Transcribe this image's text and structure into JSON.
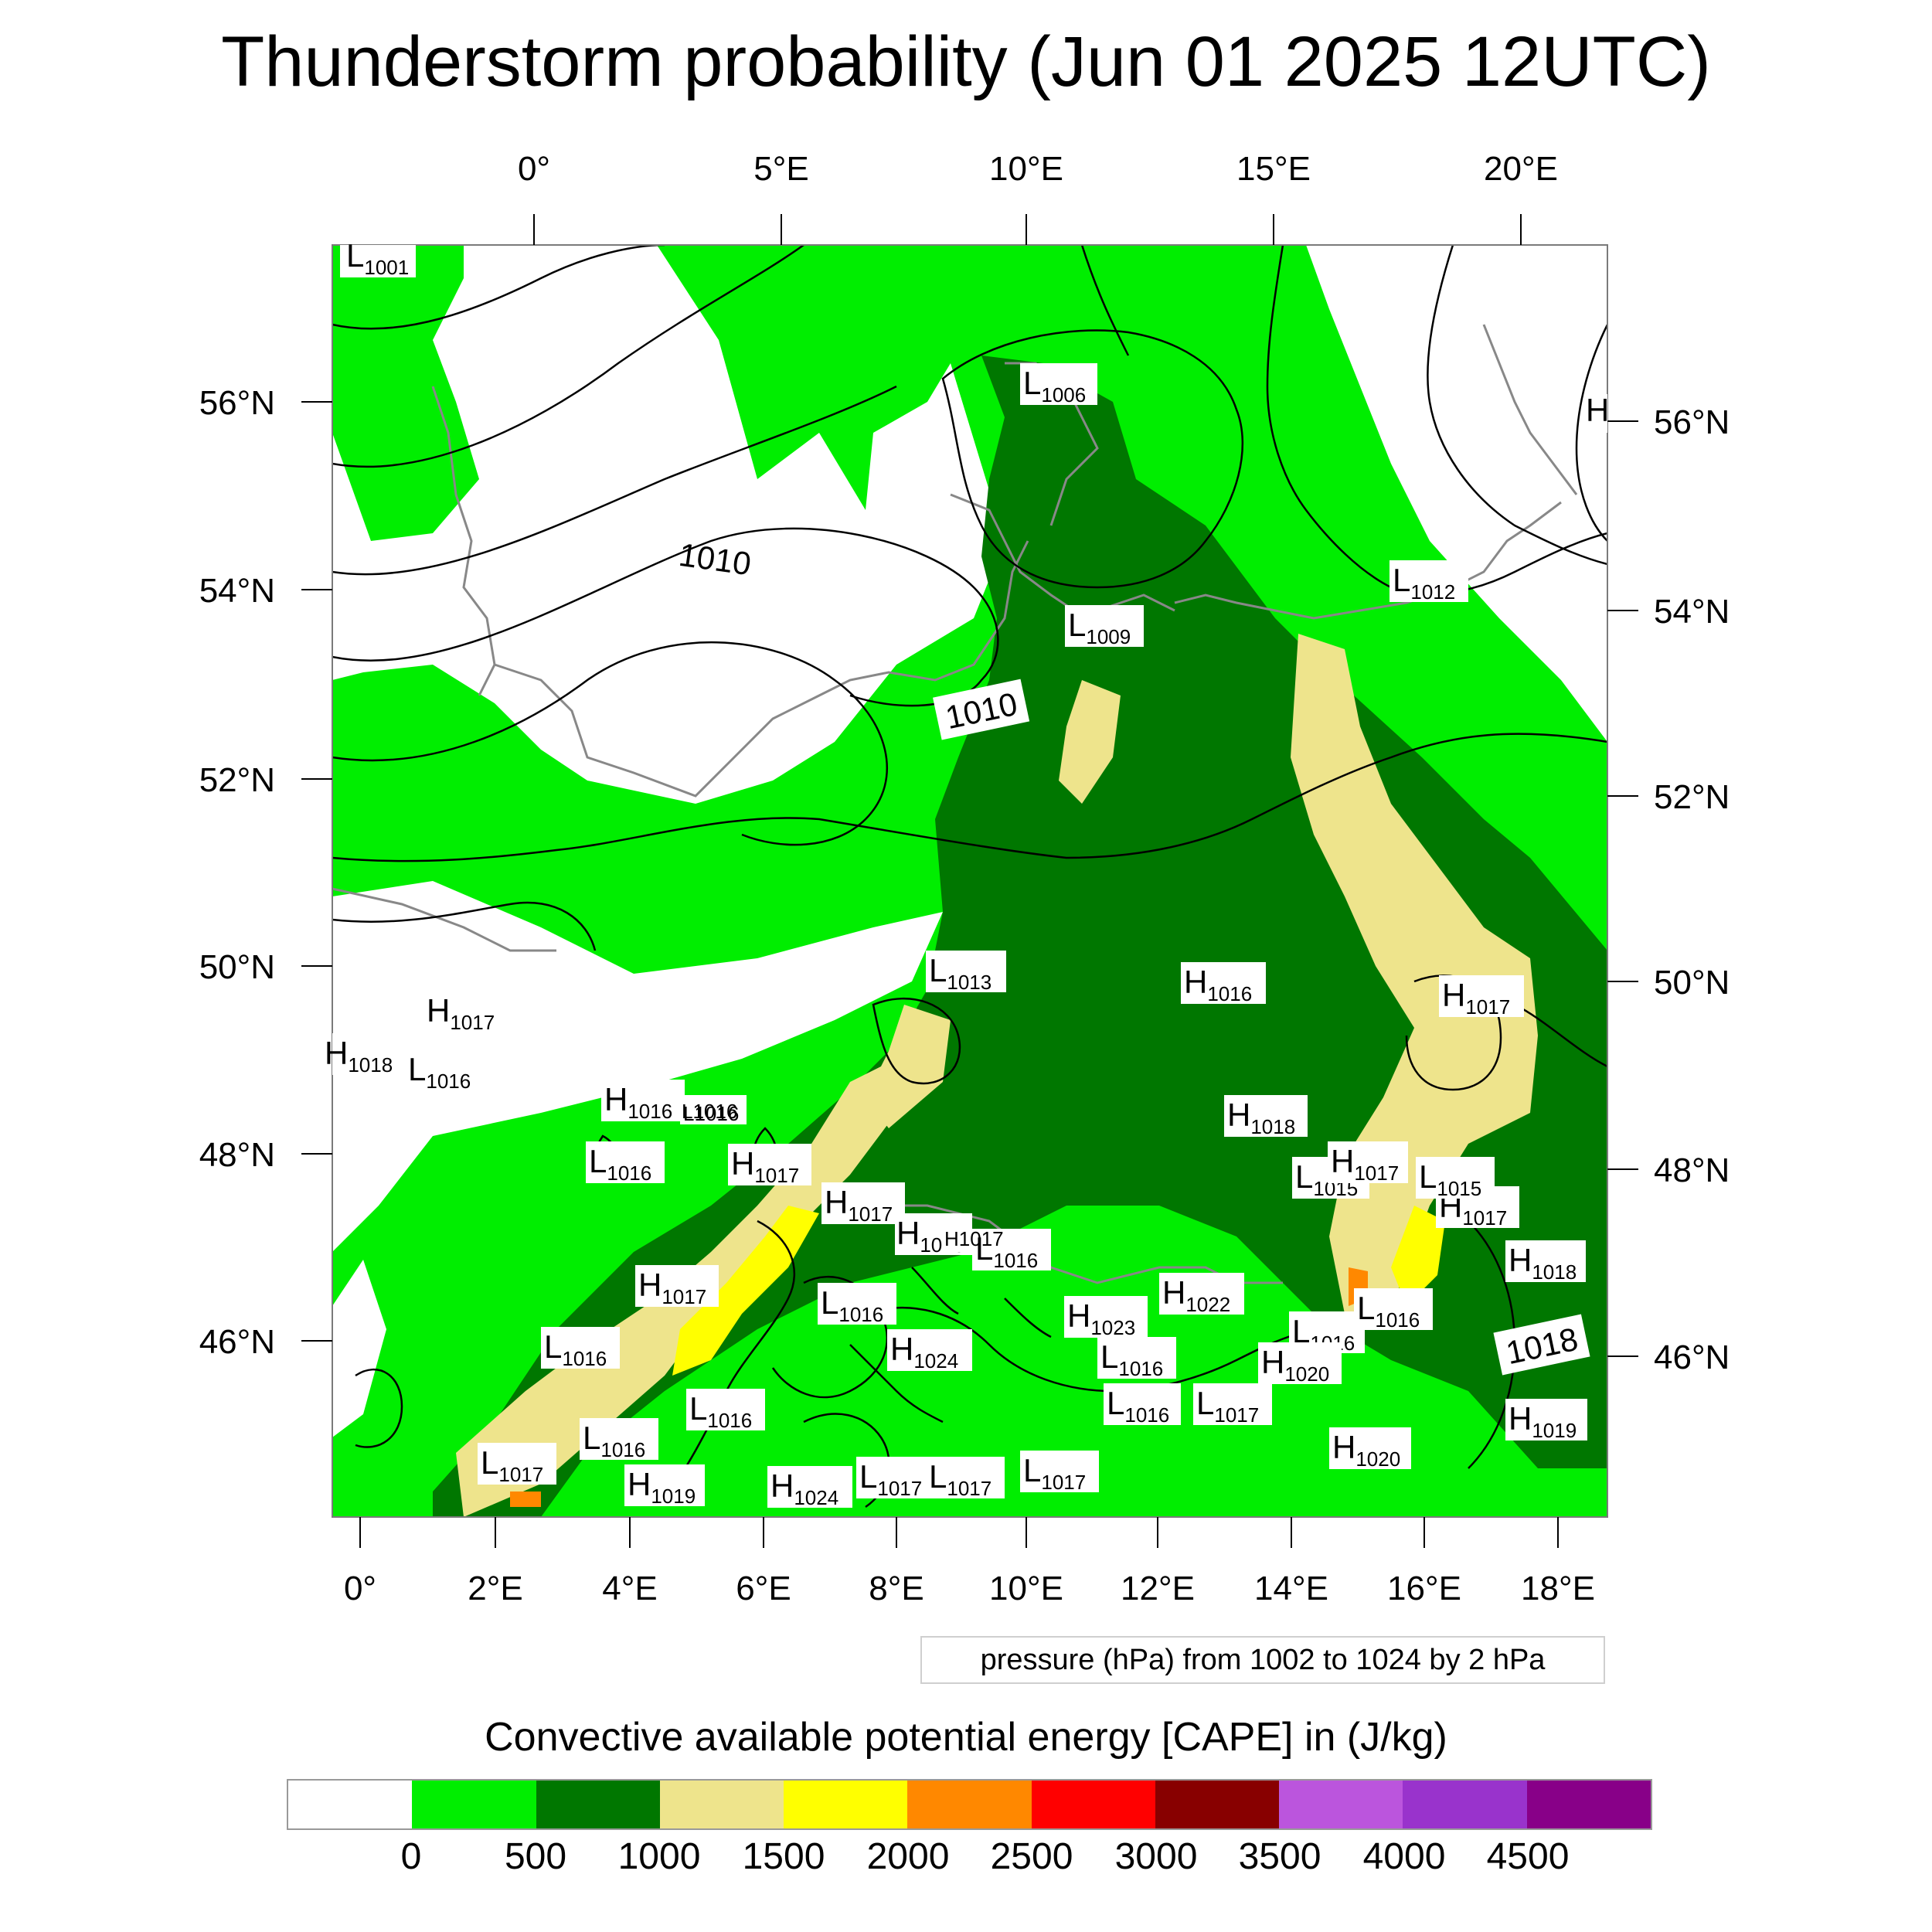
{
  "title": "Thunderstorm probability (Jun 01 2025 12UTC)",
  "top_lon_labels": [
    "0°",
    "5°E",
    "10°E",
    "15°E",
    "20°E"
  ],
  "bottom_lon_labels": [
    "0°",
    "2°E",
    "4°E",
    "6°E",
    "8°E",
    "10°E",
    "12°E",
    "14°E",
    "16°E",
    "18°E"
  ],
  "left_lat_labels": [
    "56°N",
    "54°N",
    "52°N",
    "50°N",
    "48°N",
    "46°N"
  ],
  "right_lat_labels": [
    "56°N",
    "54°N",
    "52°N",
    "50°N",
    "48°N",
    "46°N"
  ],
  "isobar_labels": [
    "1010",
    "1010",
    "1018"
  ],
  "pressure_centers": [
    {
      "type": "L",
      "value": "1001"
    },
    {
      "type": "L",
      "value": "1006"
    },
    {
      "type": "L",
      "value": "1009"
    },
    {
      "type": "L",
      "value": "1012"
    },
    {
      "type": "H",
      "value": ""
    },
    {
      "type": "L",
      "value": "1013"
    },
    {
      "type": "H",
      "value": "1016"
    },
    {
      "type": "H",
      "value": "1017"
    },
    {
      "type": "H",
      "value": "1018"
    },
    {
      "type": "L",
      "value": "1016"
    },
    {
      "type": "H",
      "value": "1017"
    },
    {
      "type": "H",
      "value": "1016"
    },
    {
      "type": "L",
      "value": "1016"
    },
    {
      "type": "L",
      "value": "1016"
    },
    {
      "type": "H",
      "value": "1017"
    },
    {
      "type": "H",
      "value": "1017"
    },
    {
      "type": "H",
      "value": "1018"
    },
    {
      "type": "L",
      "value": "1016"
    },
    {
      "type": "H",
      "value": "1017"
    },
    {
      "type": "H",
      "value": "1017"
    },
    {
      "type": "H",
      "value": "1018"
    },
    {
      "type": "L",
      "value": "1015"
    },
    {
      "type": "H",
      "value": "1017"
    },
    {
      "type": "L",
      "value": "1015"
    },
    {
      "type": "H",
      "value": "1018"
    },
    {
      "type": "H",
      "value": "1017"
    },
    {
      "type": "L",
      "value": "1016"
    },
    {
      "type": "H",
      "value": "1022"
    },
    {
      "type": "H",
      "value": "1023"
    },
    {
      "type": "L",
      "value": "1016"
    },
    {
      "type": "L",
      "value": "1016"
    },
    {
      "type": "H",
      "value": "1024"
    },
    {
      "type": "L",
      "value": "1016"
    },
    {
      "type": "L",
      "value": "1016"
    },
    {
      "type": "H",
      "value": "1020"
    },
    {
      "type": "L",
      "value": "1016"
    },
    {
      "type": "L",
      "value": "1016"
    },
    {
      "type": "L",
      "value": "1016"
    },
    {
      "type": "L",
      "value": "1017"
    },
    {
      "type": "H",
      "value": "1019"
    },
    {
      "type": "H",
      "value": "1019"
    },
    {
      "type": "H",
      "value": "1024"
    },
    {
      "type": "L",
      "value": "1017"
    },
    {
      "type": "L",
      "value": "1017"
    },
    {
      "type": "L",
      "value": "1017"
    },
    {
      "type": "L",
      "value": "1017"
    },
    {
      "type": "H",
      "value": "1020"
    },
    {
      "type": "L",
      "value": "1016"
    }
  ],
  "pressure_note": "pressure (hPa) from 1002 to 1024 by 2 hPa",
  "colorbar": {
    "title": "Convective available potential energy [CAPE] in (J/kg)",
    "colors": [
      "#ffffff",
      "#00ee00",
      "#007700",
      "#eee48c",
      "#ffff00",
      "#ff8800",
      "#ff0000",
      "#880000",
      "#bb55dd",
      "#9933cc",
      "#880088"
    ],
    "ticks": [
      "0",
      "500",
      "1000",
      "1500",
      "2000",
      "2500",
      "3000",
      "3500",
      "4000",
      "4500"
    ]
  },
  "colors": {
    "white": "#ffffff",
    "green": "#00ee00",
    "dark_green": "#007700",
    "khaki": "#eee48c",
    "yellow": "#ffff00",
    "orange": "#ff8800",
    "coast": "#888888",
    "isobar": "#000000"
  }
}
